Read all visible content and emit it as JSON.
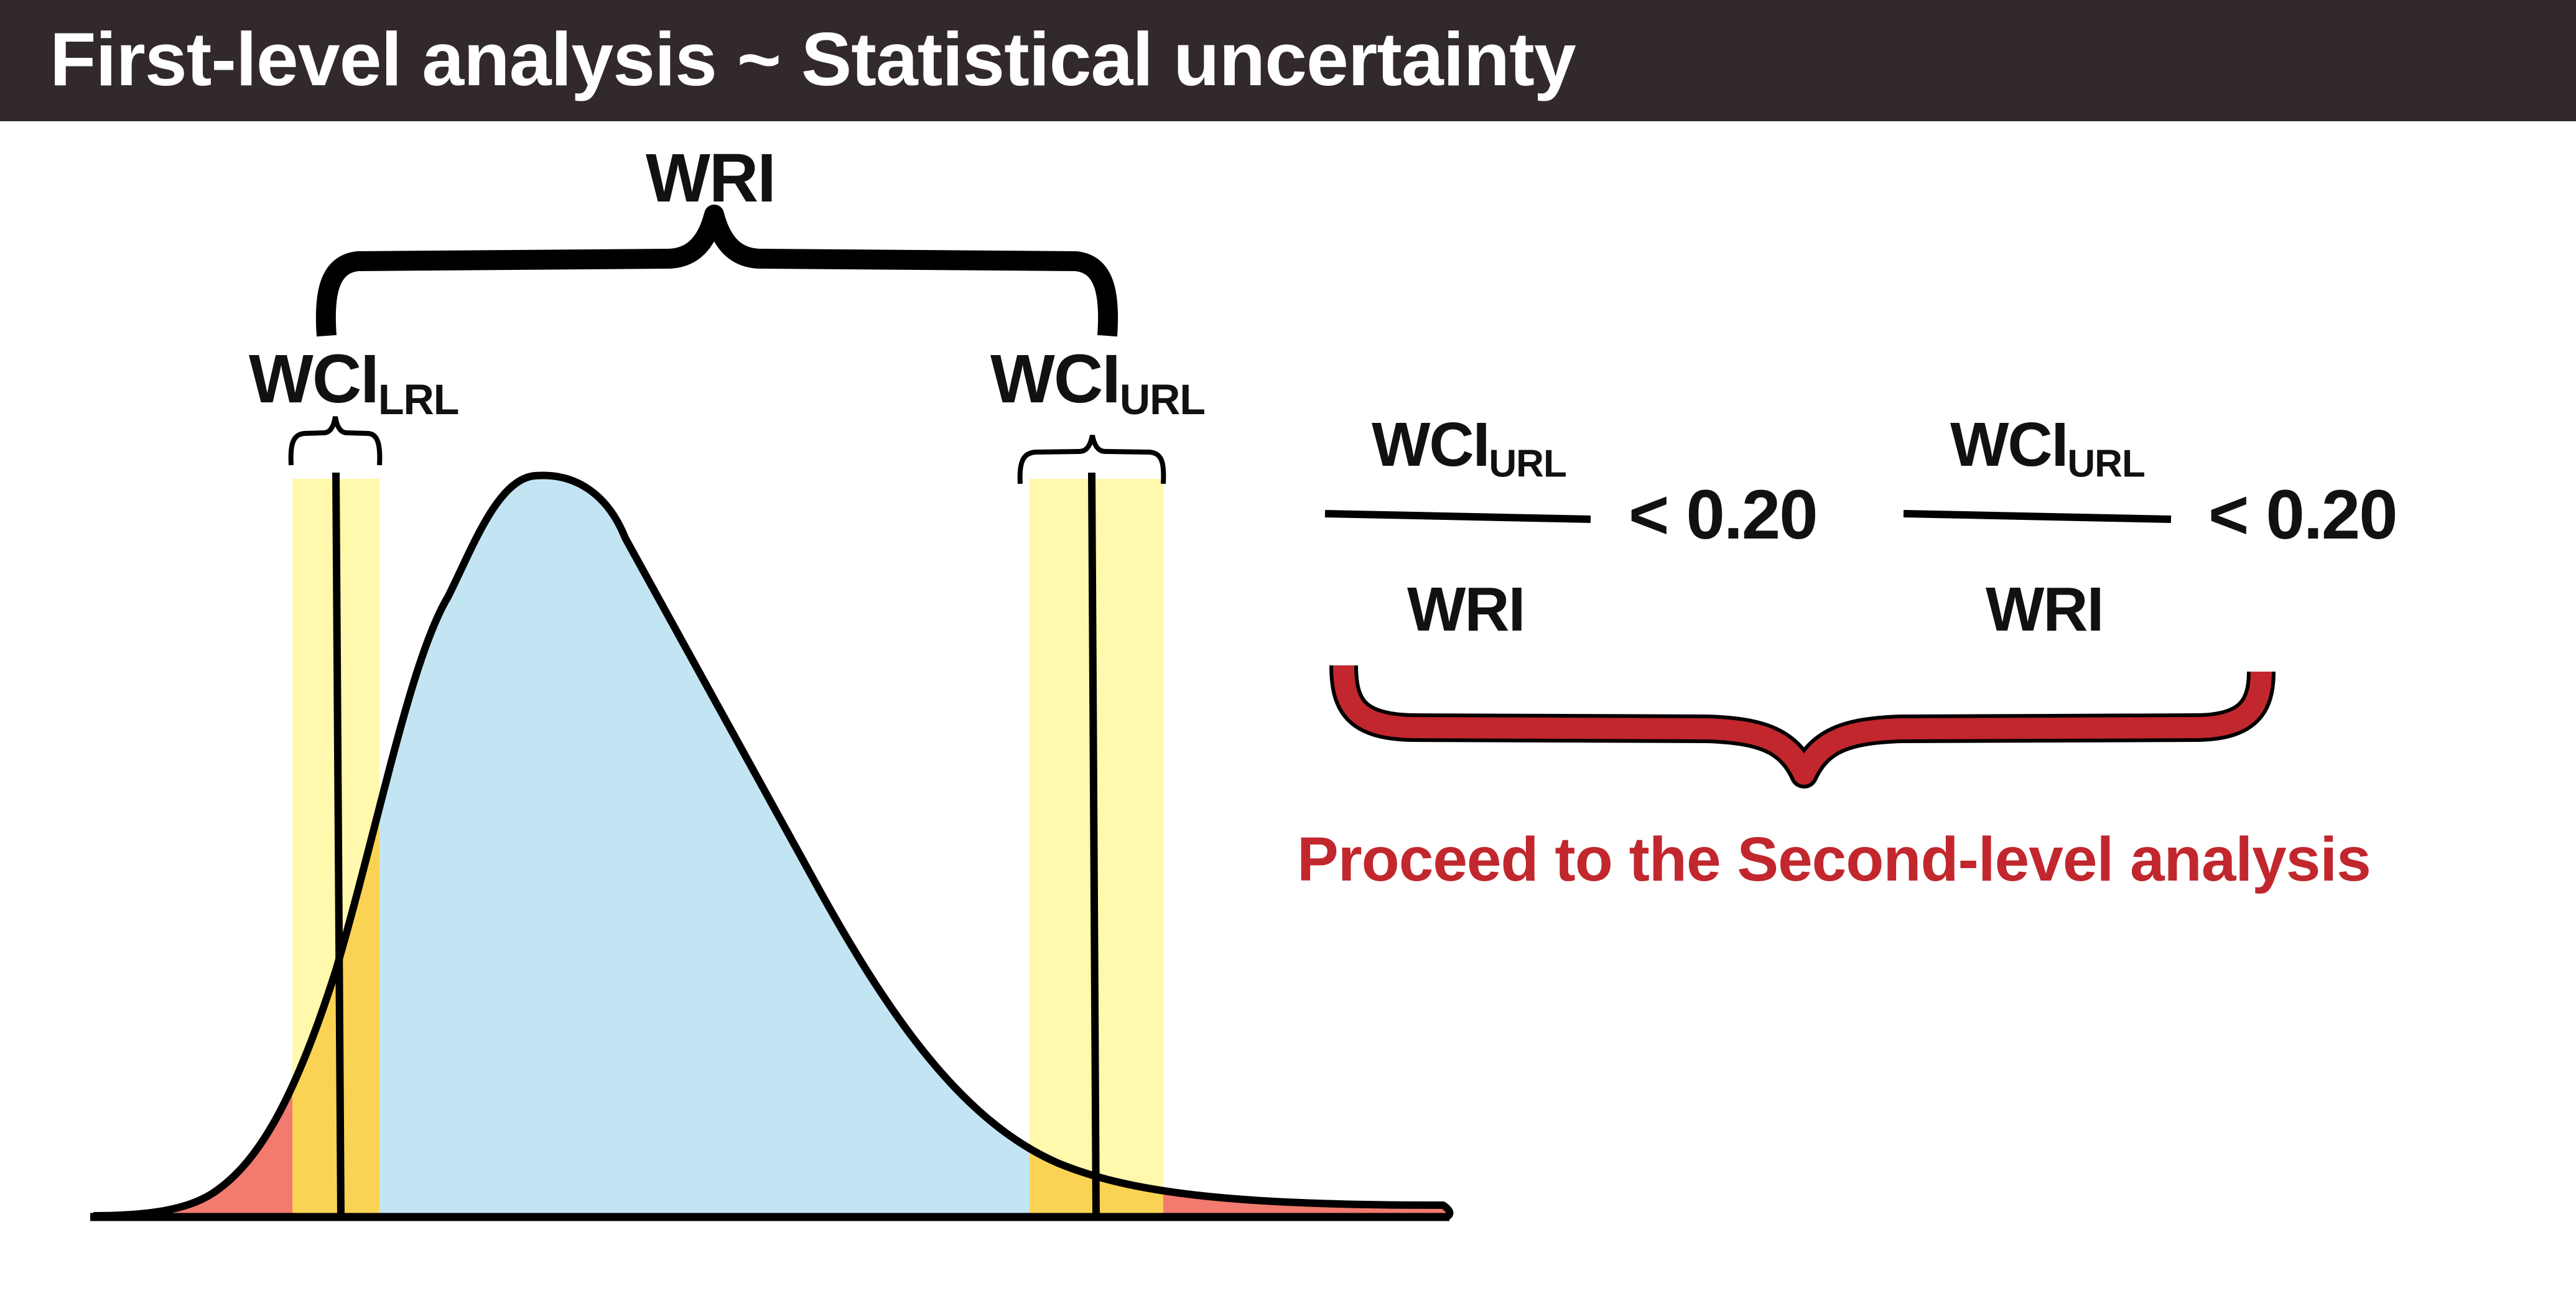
{
  "header": {
    "title": "First-level analysis ~ Statistical uncertainty"
  },
  "labels": {
    "wri_top": "WRI",
    "wci_lrl_main": "WCI",
    "wci_lrl_sub": "LRL",
    "wci_url_main": "WCI",
    "wci_url_sub": "URL"
  },
  "ratios": [
    {
      "numerator_main": "WCI",
      "numerator_sub": "URL",
      "denominator": "WRI",
      "comparison": "< 0.20"
    },
    {
      "numerator_main": "WCI",
      "numerator_sub": "URL",
      "denominator": "WRI",
      "comparison": "< 0.20"
    }
  ],
  "conclusion": "Proceed to the Second-level analysis",
  "colors": {
    "header_bg": "#322a2a",
    "distribution_fill": "#c3e5f3",
    "interval_band": "#fff36a",
    "tail_fill": "#f27a6e",
    "overlap_fill": "#f3ad3a",
    "accent_red": "#c1272d",
    "line": "#000000"
  }
}
